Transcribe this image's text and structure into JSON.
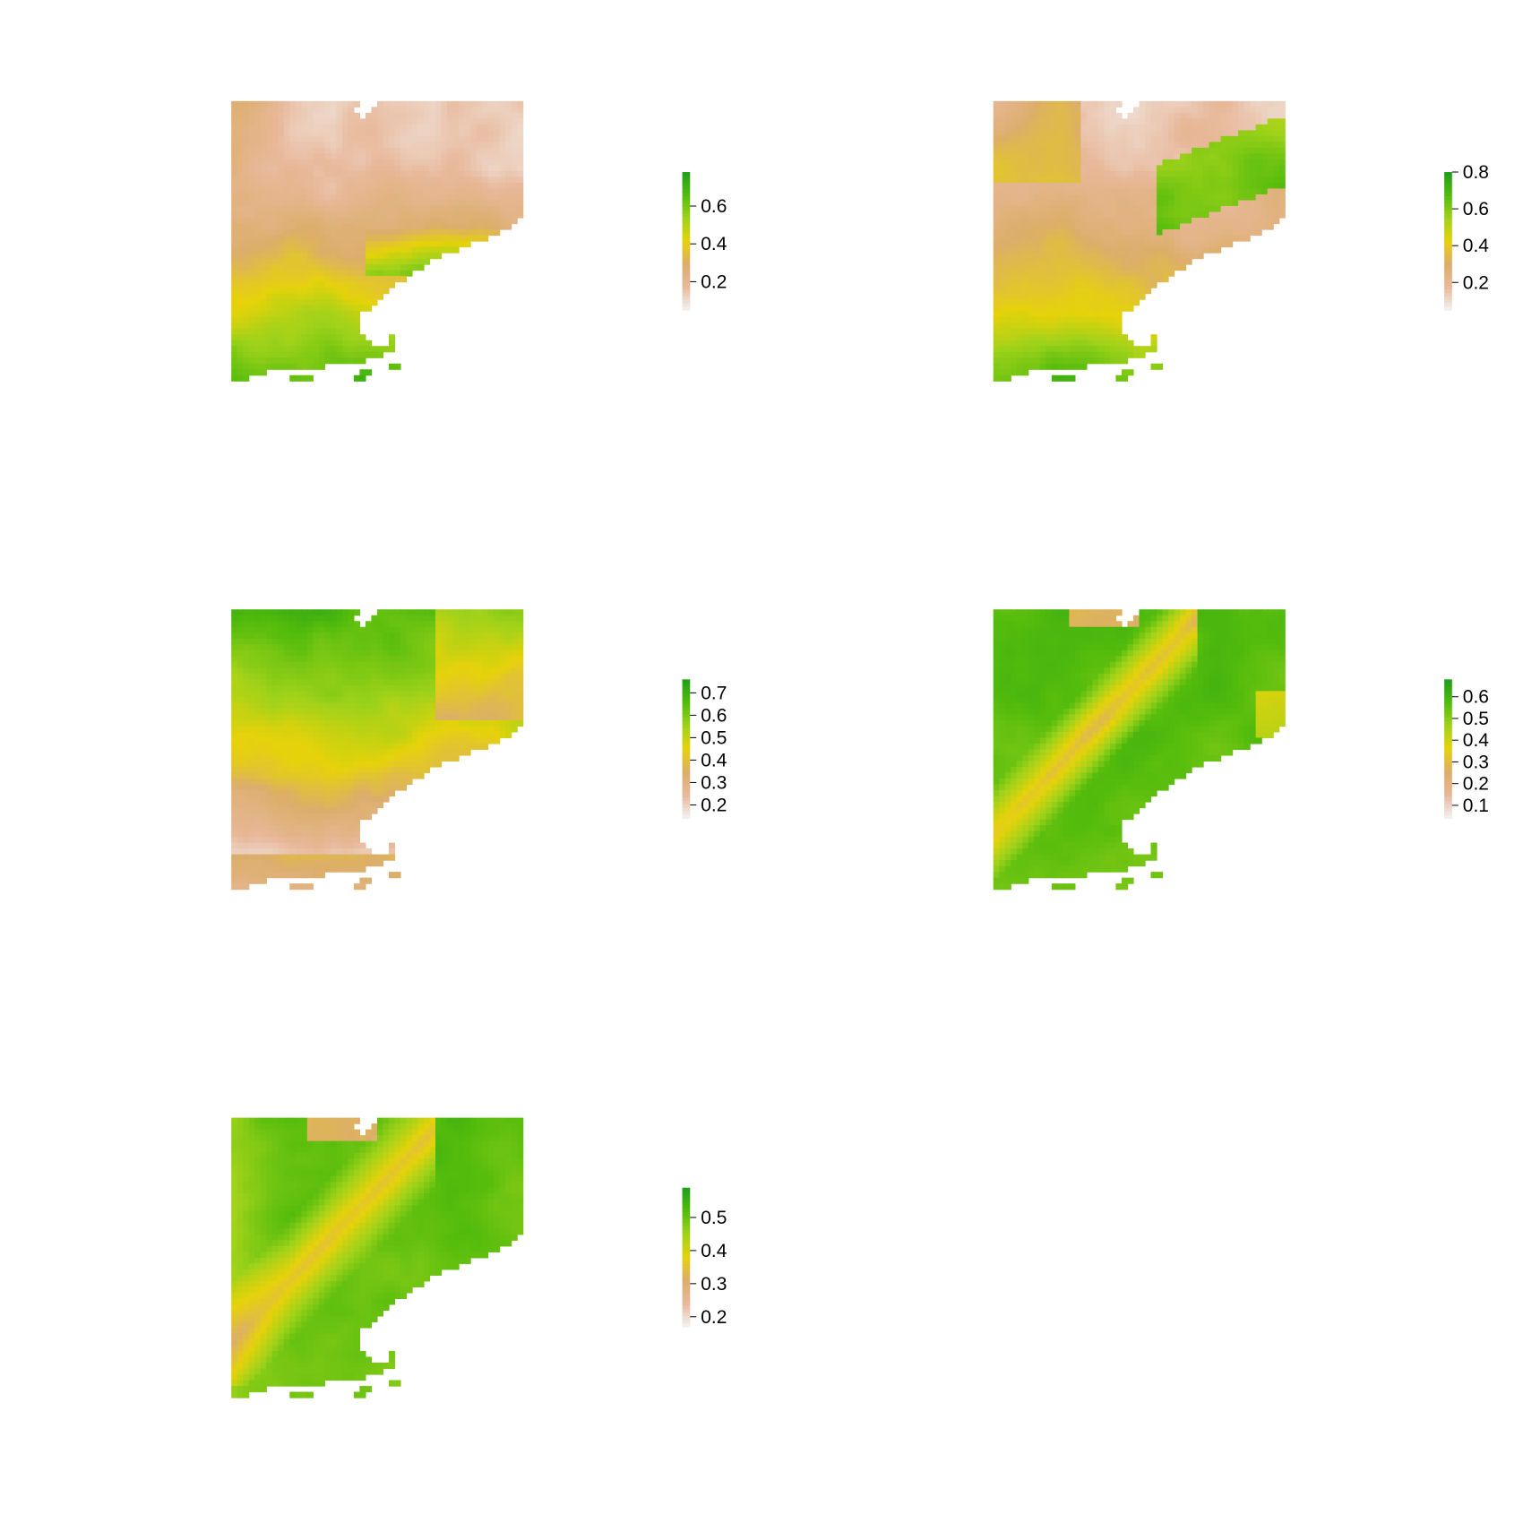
{
  "chart_data": [
    {
      "type": "heatmap",
      "panel": 1,
      "palette": [
        "#f2f2f2",
        "#e8b89a",
        "#dcae6a",
        "#e6d20a",
        "#9fd21a",
        "#52bb0c",
        "#1f9e1a"
      ],
      "zlim": [
        0.05,
        0.78
      ],
      "legend_ticks": [
        0.2,
        0.4,
        0.6
      ],
      "pattern": "north-low-south-high",
      "legend_placement": "right"
    },
    {
      "type": "heatmap",
      "panel": 2,
      "palette": [
        "#f2f2f2",
        "#e8b89a",
        "#dcae6a",
        "#e6d20a",
        "#9fd21a",
        "#52bb0c",
        "#1f9e1a"
      ],
      "zlim": [
        0.05,
        0.8
      ],
      "legend_ticks": [
        0.2,
        0.4,
        0.6,
        0.8
      ],
      "pattern": "north-low-south-high-coastal",
      "legend_placement": "right"
    },
    {
      "type": "heatmap",
      "panel": 3,
      "palette": [
        "#f2f2f2",
        "#e8b89a",
        "#dcae6a",
        "#e6d20a",
        "#9fd21a",
        "#52bb0c",
        "#1f9e1a"
      ],
      "zlim": [
        0.14,
        0.76
      ],
      "legend_ticks": [
        0.2,
        0.3,
        0.4,
        0.5,
        0.6,
        0.7
      ],
      "pattern": "north-high-south-low",
      "legend_placement": "right"
    },
    {
      "type": "heatmap",
      "panel": 4,
      "palette": [
        "#f2f2f2",
        "#e8b89a",
        "#dcae6a",
        "#e6d20a",
        "#9fd21a",
        "#52bb0c",
        "#1f9e1a"
      ],
      "zlim": [
        0.04,
        0.68
      ],
      "legend_ticks": [
        0.1,
        0.2,
        0.3,
        0.4,
        0.5,
        0.6
      ],
      "pattern": "mostly-high-with-ridge",
      "legend_placement": "right"
    },
    {
      "type": "heatmap",
      "panel": 5,
      "palette": [
        "#f2f2f2",
        "#e8b89a",
        "#dcae6a",
        "#e6d20a",
        "#9fd21a",
        "#52bb0c",
        "#1f9e1a"
      ],
      "zlim": [
        0.17,
        0.59
      ],
      "legend_ticks": [
        0.2,
        0.3,
        0.4,
        0.5
      ],
      "pattern": "mostly-high-with-ridge-yellow",
      "legend_placement": "right"
    }
  ]
}
